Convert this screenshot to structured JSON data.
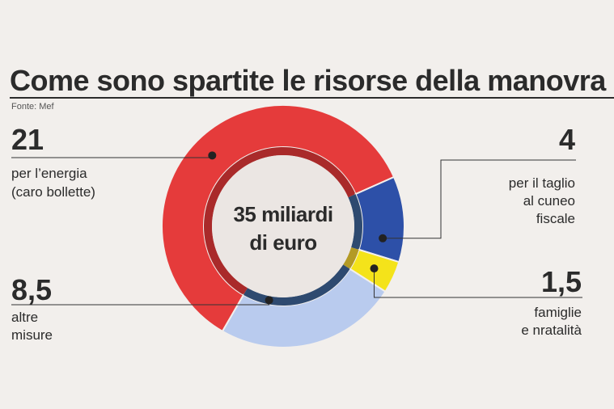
{
  "title": "Come sono spartite le risorse della manovra",
  "source": "Fonte: Mef",
  "center": {
    "line1": "35 miliardi",
    "line2": "di euro"
  },
  "colors": {
    "energia": "#e53b3b",
    "cuneo": "#2d50a8",
    "famiglie": "#f4e31a",
    "altre": "#b9cbee",
    "gold_divider": "#b39a25",
    "inner_ring_dark": "#a92a2a",
    "inner_ring_blue": "#2e4a70",
    "hole": "#ebe6e3"
  },
  "labels": {
    "energia": {
      "value": "21",
      "text1": "per l’energia",
      "text2": "(caro bollette)"
    },
    "cuneo": {
      "value": "4",
      "text1": "per il taglio",
      "text2": "al cuneo",
      "text3": "fiscale"
    },
    "famiglie": {
      "value": "1,5",
      "text1": "famiglie",
      "text2": "e nratalità"
    },
    "altre": {
      "value": "8,5",
      "text1": "altre",
      "text2": "misure"
    }
  },
  "chart_data": {
    "type": "pie",
    "title": "Come sono spartite le risorse della manovra",
    "total": 35,
    "slices": [
      {
        "name": "per l’energia (caro bollette)",
        "value": 21,
        "color": "#e53b3b"
      },
      {
        "name": "per il taglio al cuneo fiscale",
        "value": 4,
        "color": "#2d50a8"
      },
      {
        "name": "famiglie e nratalità",
        "value": 1.5,
        "color": "#f4e31a"
      },
      {
        "name": "altre misure",
        "value": 8.5,
        "color": "#b9cbee"
      }
    ]
  }
}
